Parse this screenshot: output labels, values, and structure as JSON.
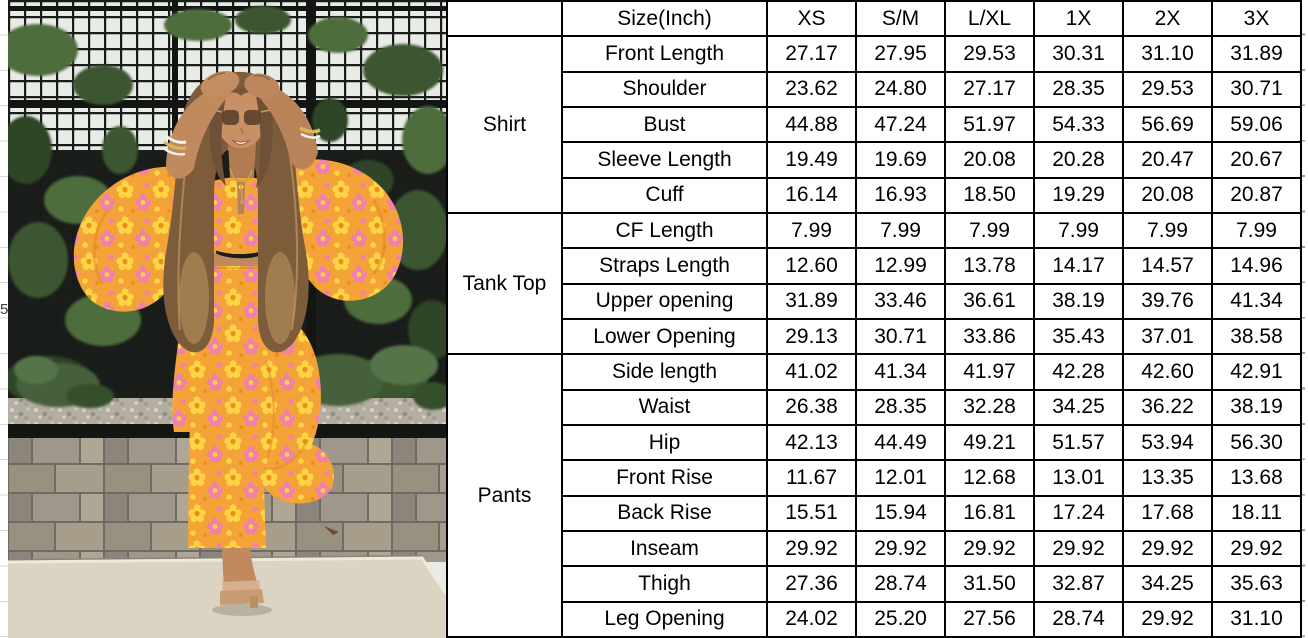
{
  "left_gutter": {
    "row_number_fragment": "5"
  },
  "photo": {
    "alt": "model-in-floral-three-piece-set",
    "colors": {
      "outfit_orange": "#f4a338",
      "flower_yellow": "#ffd445",
      "flower_pink": "#f17fb0",
      "foliage_green": "#4e6d3c",
      "fence_black": "#15181a",
      "sky_white": "#e9ebe6",
      "gravel_gray": "#b3ada2",
      "paver_gray": "#98917f",
      "curb_cream": "#dcd4c2",
      "skin_tan": "#c08a5e",
      "hair_brown": "#7d5c3c"
    }
  },
  "table": {
    "header": {
      "corner": "",
      "size_label": "Size(Inch)",
      "sizes": [
        "XS",
        "S/M",
        "L/XL",
        "1X",
        "2X",
        "3X"
      ]
    },
    "groups": [
      {
        "name": "Shirt",
        "rows": [
          {
            "label": "Front Length",
            "values": [
              "27.17",
              "27.95",
              "29.53",
              "30.31",
              "31.10",
              "31.89"
            ]
          },
          {
            "label": "Shoulder",
            "values": [
              "23.62",
              "24.80",
              "27.17",
              "28.35",
              "29.53",
              "30.71"
            ]
          },
          {
            "label": "Bust",
            "values": [
              "44.88",
              "47.24",
              "51.97",
              "54.33",
              "56.69",
              "59.06"
            ]
          },
          {
            "label": "Sleeve Length",
            "values": [
              "19.49",
              "19.69",
              "20.08",
              "20.28",
              "20.47",
              "20.67"
            ]
          },
          {
            "label": "Cuff",
            "values": [
              "16.14",
              "16.93",
              "18.50",
              "19.29",
              "20.08",
              "20.87"
            ]
          }
        ]
      },
      {
        "name": "Tank Top",
        "rows": [
          {
            "label": "CF Length",
            "values": [
              "7.99",
              "7.99",
              "7.99",
              "7.99",
              "7.99",
              "7.99"
            ]
          },
          {
            "label": "Straps Length",
            "values": [
              "12.60",
              "12.99",
              "13.78",
              "14.17",
              "14.57",
              "14.96"
            ]
          },
          {
            "label": "Upper opening",
            "values": [
              "31.89",
              "33.46",
              "36.61",
              "38.19",
              "39.76",
              "41.34"
            ]
          },
          {
            "label": "Lower Opening",
            "values": [
              "29.13",
              "30.71",
              "33.86",
              "35.43",
              "37.01",
              "38.58"
            ]
          }
        ]
      },
      {
        "name": "Pants",
        "rows": [
          {
            "label": "Side length",
            "values": [
              "41.02",
              "41.34",
              "41.97",
              "42.28",
              "42.60",
              "42.91"
            ]
          },
          {
            "label": "Waist",
            "values": [
              "26.38",
              "28.35",
              "32.28",
              "34.25",
              "36.22",
              "38.19"
            ]
          },
          {
            "label": "Hip",
            "values": [
              "42.13",
              "44.49",
              "49.21",
              "51.57",
              "53.94",
              "56.30"
            ]
          },
          {
            "label": "Front Rise",
            "values": [
              "11.67",
              "12.01",
              "12.68",
              "13.01",
              "13.35",
              "13.68"
            ]
          },
          {
            "label": "Back Rise",
            "values": [
              "15.51",
              "15.94",
              "16.81",
              "17.24",
              "17.68",
              "18.11"
            ]
          },
          {
            "label": "Inseam",
            "values": [
              "29.92",
              "29.92",
              "29.92",
              "29.92",
              "29.92",
              "29.92"
            ]
          },
          {
            "label": "Thigh",
            "values": [
              "27.36",
              "28.74",
              "31.50",
              "32.87",
              "34.25",
              "35.63"
            ]
          },
          {
            "label": "Leg Opening",
            "values": [
              "24.02",
              "25.20",
              "27.56",
              "28.74",
              "29.92",
              "31.10"
            ]
          }
        ]
      }
    ]
  }
}
